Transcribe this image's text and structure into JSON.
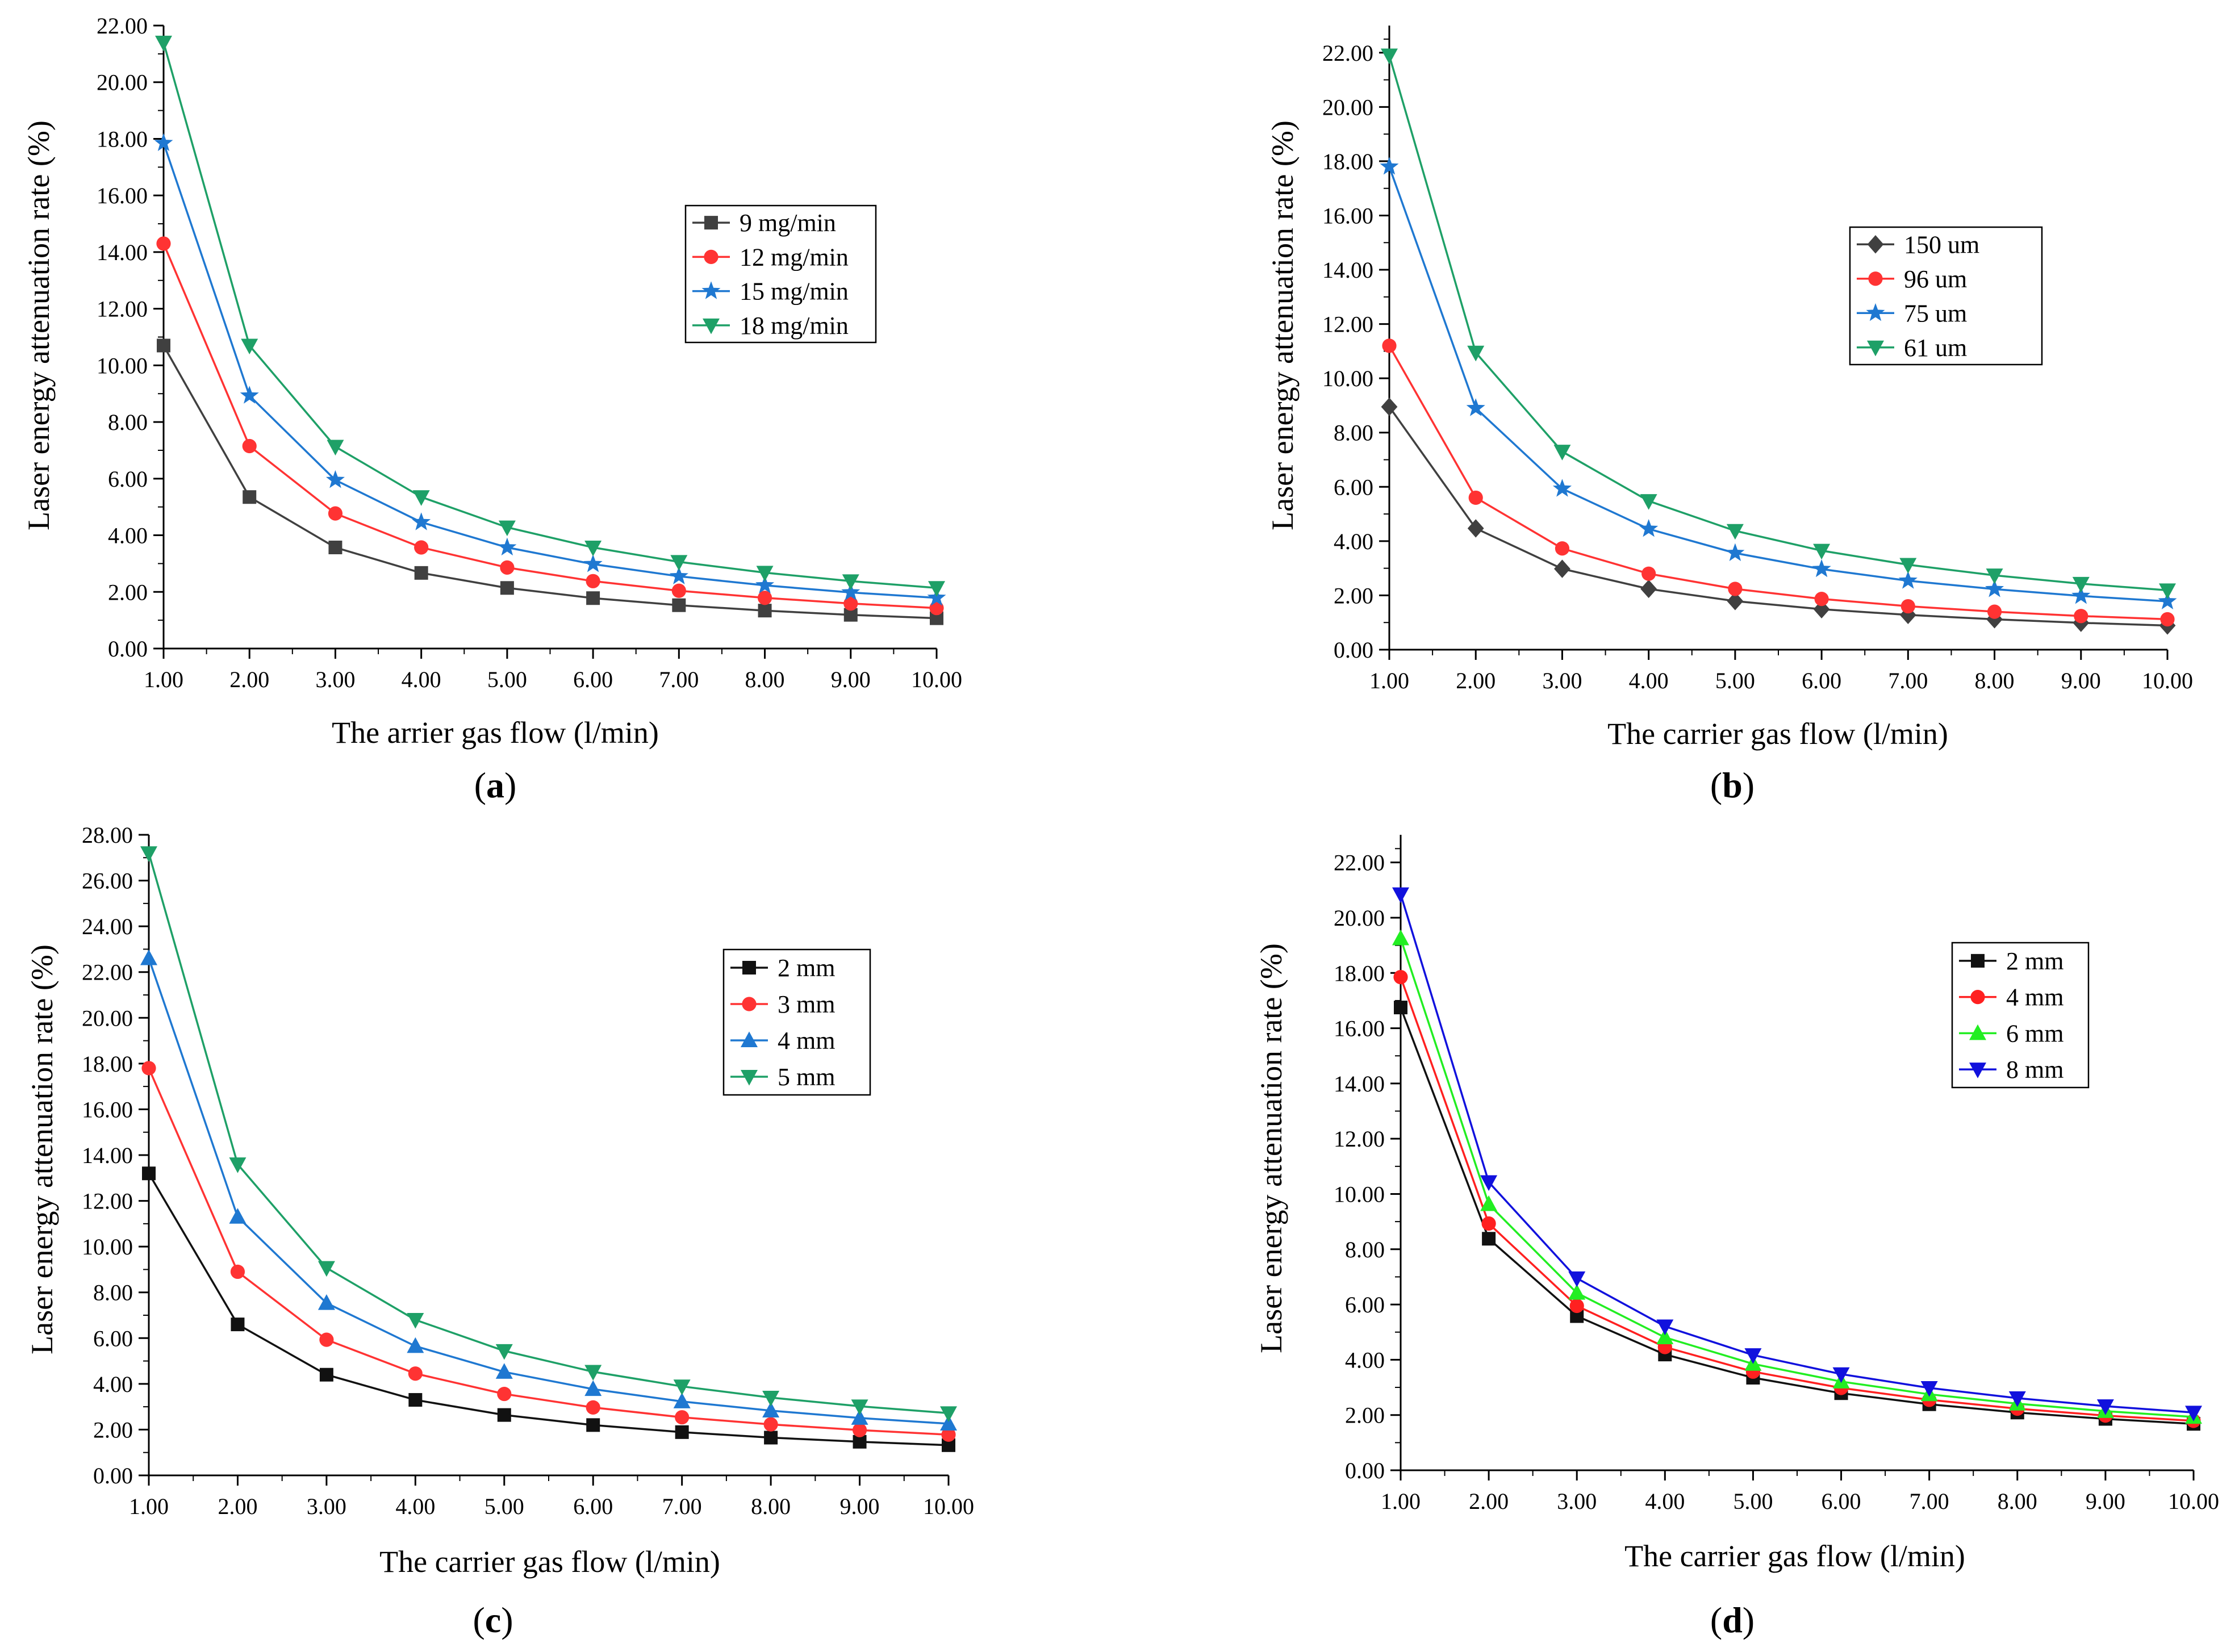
{
  "figure": {
    "panels": [
      {
        "id": "a",
        "caption_open": "(",
        "caption_letter": "a",
        "caption_close": ")"
      },
      {
        "id": "b",
        "caption_open": "(",
        "caption_letter": "b",
        "caption_close": ")"
      },
      {
        "id": "c",
        "caption_open": "(",
        "caption_letter": "c",
        "caption_close": ")"
      },
      {
        "id": "d",
        "caption_open": "(",
        "caption_letter": "d",
        "caption_close": ")"
      }
    ]
  },
  "chart_data": [
    {
      "type": "line",
      "panel": "a",
      "title": "",
      "xlabel": "The arrier gas flow (l/min)",
      "ylabel": "Laser energy attenuation rate (%)",
      "xlim": [
        1,
        10
      ],
      "ylim": [
        0,
        22
      ],
      "x_ticks": [
        1,
        2,
        3,
        4,
        5,
        6,
        7,
        8,
        9,
        10
      ],
      "x_tick_labels": [
        "1.00",
        "2.00",
        "3.00",
        "4.00",
        "5.00",
        "6.00",
        "7.00",
        "8.00",
        "9.00",
        "10.00"
      ],
      "y_ticks": [
        0,
        2,
        4,
        6,
        8,
        10,
        12,
        14,
        16,
        18,
        20,
        22
      ],
      "y_tick_labels": [
        "0.00",
        "2.00",
        "4.00",
        "6.00",
        "8.00",
        "10.00",
        "12.00",
        "14.00",
        "16.00",
        "18.00",
        "20.00",
        "22.00"
      ],
      "legend": "upper-right",
      "x": [
        1,
        2,
        3,
        4,
        5,
        6,
        7,
        8,
        9,
        10
      ],
      "series": [
        {
          "name": "9  mg/min",
          "color": "#404040",
          "marker": "square",
          "values": [
            10.7,
            5.35,
            3.57,
            2.67,
            2.14,
            1.78,
            1.53,
            1.34,
            1.19,
            1.07
          ]
        },
        {
          "name": "12 mg/min",
          "color": "#ff3333",
          "marker": "circle",
          "values": [
            14.3,
            7.15,
            4.77,
            3.57,
            2.86,
            2.38,
            2.04,
            1.79,
            1.59,
            1.43
          ]
        },
        {
          "name": "15 mg/min",
          "color": "#1f78d1",
          "marker": "star",
          "values": [
            17.85,
            8.93,
            5.95,
            4.46,
            3.57,
            2.98,
            2.55,
            2.23,
            1.98,
            1.79
          ]
        },
        {
          "name": "18 mg/min",
          "color": "#1ea067",
          "marker": "triangle-down",
          "values": [
            21.4,
            10.7,
            7.13,
            5.35,
            4.28,
            3.57,
            3.06,
            2.68,
            2.38,
            2.14
          ]
        }
      ]
    },
    {
      "type": "line",
      "panel": "b",
      "title": "",
      "xlabel": "The carrier gas flow (l/min)",
      "ylabel": "Laser energy attenuation rate (%)",
      "xlim": [
        1,
        10
      ],
      "ylim": [
        0,
        23
      ],
      "x_ticks": [
        1,
        2,
        3,
        4,
        5,
        6,
        7,
        8,
        9,
        10
      ],
      "x_tick_labels": [
        "1.00",
        "2.00",
        "3.00",
        "4.00",
        "5.00",
        "6.00",
        "7.00",
        "8.00",
        "9.00",
        "10.00"
      ],
      "y_ticks": [
        0,
        2,
        4,
        6,
        8,
        10,
        12,
        14,
        16,
        18,
        20,
        22
      ],
      "y_tick_labels": [
        "0.00",
        "2.00",
        "4.00",
        "6.00",
        "8.00",
        "10.00",
        "12.00",
        "14.00",
        "16.00",
        "18.00",
        "20.00",
        "22.00"
      ],
      "legend": "upper-right",
      "x": [
        1,
        2,
        3,
        4,
        5,
        6,
        7,
        8,
        9,
        10
      ],
      "series": [
        {
          "name": "150 um",
          "color": "#404040",
          "marker": "diamond",
          "values": [
            8.95,
            4.47,
            2.98,
            2.24,
            1.79,
            1.49,
            1.28,
            1.12,
            0.99,
            0.89
          ]
        },
        {
          "name": "96  um",
          "color": "#ff3333",
          "marker": "circle",
          "values": [
            11.2,
            5.6,
            3.73,
            2.8,
            2.24,
            1.87,
            1.6,
            1.4,
            1.24,
            1.12
          ]
        },
        {
          "name": "75  um",
          "color": "#1f78d1",
          "marker": "star",
          "values": [
            17.8,
            8.9,
            5.93,
            4.45,
            3.56,
            2.97,
            2.54,
            2.23,
            1.98,
            1.78
          ]
        },
        {
          "name": "61  um",
          "color": "#1ea067",
          "marker": "triangle-down",
          "values": [
            21.9,
            10.95,
            7.3,
            5.48,
            4.38,
            3.65,
            3.13,
            2.74,
            2.43,
            2.19
          ]
        }
      ]
    },
    {
      "type": "line",
      "panel": "c",
      "title": "",
      "xlabel": "The carrier gas flow (l/min)",
      "ylabel": "Laser energy attenuation rate (%)",
      "xlim": [
        1,
        10
      ],
      "ylim": [
        0,
        28
      ],
      "x_ticks": [
        1,
        2,
        3,
        4,
        5,
        6,
        7,
        8,
        9,
        10
      ],
      "x_tick_labels": [
        "1.00",
        "2.00",
        "3.00",
        "4.00",
        "5.00",
        "6.00",
        "7.00",
        "8.00",
        "9.00",
        "10.00"
      ],
      "y_ticks": [
        0,
        2,
        4,
        6,
        8,
        10,
        12,
        14,
        16,
        18,
        20,
        22,
        24,
        26,
        28
      ],
      "y_tick_labels": [
        "0.00",
        "2.00",
        "4.00",
        "6.00",
        "8.00",
        "10.00",
        "12.00",
        "14.00",
        "16.00",
        "18.00",
        "20.00",
        "22.00",
        "24.00",
        "26.00",
        "28.00"
      ],
      "legend": "upper-right",
      "x": [
        1,
        2,
        3,
        4,
        5,
        6,
        7,
        8,
        9,
        10
      ],
      "series": [
        {
          "name": "2 mm",
          "color": "#111111",
          "marker": "square",
          "values": [
            13.2,
            6.6,
            4.4,
            3.3,
            2.64,
            2.2,
            1.89,
            1.65,
            1.47,
            1.32
          ]
        },
        {
          "name": "3 mm",
          "color": "#ff3333",
          "marker": "circle",
          "values": [
            17.8,
            8.9,
            5.93,
            4.45,
            3.56,
            2.97,
            2.54,
            2.23,
            1.98,
            1.78
          ]
        },
        {
          "name": "4 mm",
          "color": "#1f78d1",
          "marker": "triangle-up",
          "values": [
            22.6,
            11.3,
            7.53,
            5.65,
            4.52,
            3.77,
            3.23,
            2.83,
            2.51,
            2.26
          ]
        },
        {
          "name": "5 mm",
          "color": "#1ea067",
          "marker": "triangle-down",
          "values": [
            27.2,
            13.6,
            9.07,
            6.8,
            5.44,
            4.53,
            3.89,
            3.4,
            3.02,
            2.72
          ]
        }
      ]
    },
    {
      "type": "line",
      "panel": "d",
      "title": "",
      "xlabel": "The carrier gas flow (l/min)",
      "ylabel": "Laser energy attenuation rate (%)",
      "xlim": [
        1,
        10
      ],
      "ylim": [
        0,
        23
      ],
      "x_ticks": [
        1,
        2,
        3,
        4,
        5,
        6,
        7,
        8,
        9,
        10
      ],
      "x_tick_labels": [
        "1.00",
        "2.00",
        "3.00",
        "4.00",
        "5.00",
        "6.00",
        "7.00",
        "8.00",
        "9.00",
        "10.00"
      ],
      "y_ticks": [
        0,
        2,
        4,
        6,
        8,
        10,
        12,
        14,
        16,
        18,
        20,
        22
      ],
      "y_tick_labels": [
        "0.00",
        "2.00",
        "4.00",
        "6.00",
        "8.00",
        "10.00",
        "12.00",
        "14.00",
        "16.00",
        "18.00",
        "20.00",
        "22.00"
      ],
      "legend": "upper-right",
      "x": [
        1,
        2,
        3,
        4,
        5,
        6,
        7,
        8,
        9,
        10
      ],
      "series": [
        {
          "name": "2 mm",
          "color": "#111111",
          "marker": "square",
          "values": [
            16.75,
            8.38,
            5.58,
            4.19,
            3.35,
            2.79,
            2.39,
            2.09,
            1.86,
            1.68
          ]
        },
        {
          "name": "4 mm",
          "color": "#ff2020",
          "marker": "circle",
          "values": [
            17.85,
            8.93,
            5.95,
            4.46,
            3.57,
            2.98,
            2.55,
            2.23,
            1.98,
            1.79
          ]
        },
        {
          "name": "6 mm",
          "color": "#22ee22",
          "marker": "triangle-up",
          "values": [
            19.25,
            9.63,
            6.42,
            4.81,
            3.85,
            3.21,
            2.75,
            2.41,
            2.14,
            1.93
          ]
        },
        {
          "name": "8 mm",
          "color": "#1111dd",
          "marker": "triangle-down",
          "values": [
            20.85,
            10.43,
            6.95,
            5.21,
            4.17,
            3.48,
            2.98,
            2.61,
            2.32,
            2.09
          ]
        }
      ]
    }
  ]
}
